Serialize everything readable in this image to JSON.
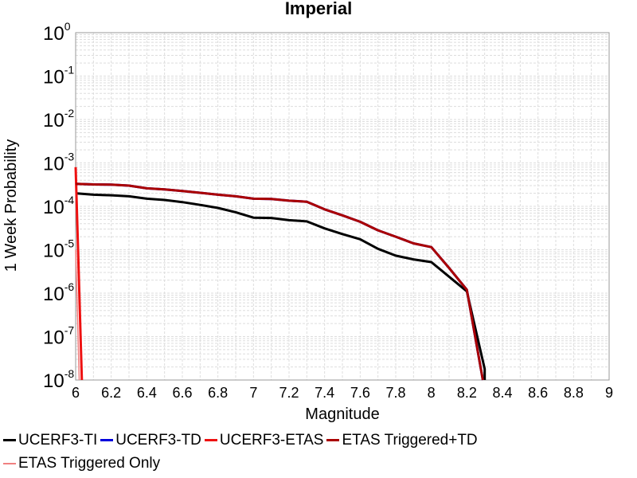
{
  "chart_data": {
    "type": "line",
    "title": "Imperial",
    "xlabel": "Magnitude",
    "ylabel": "1 Week Probability",
    "xlim": [
      6,
      9
    ],
    "ylim": [
      1e-08,
      1
    ],
    "yscale": "log",
    "grid": true,
    "legend_position": "bottom",
    "x_ticks": [
      "6",
      "6.2",
      "6.4",
      "6.6",
      "6.8",
      "7",
      "7.2",
      "7.4",
      "7.6",
      "7.8",
      "8",
      "8.2",
      "8.4",
      "8.6",
      "8.8",
      "9"
    ],
    "y_ticks": [
      {
        "base": "10",
        "exp": "0"
      },
      {
        "base": "10",
        "exp": "-1"
      },
      {
        "base": "10",
        "exp": "-2"
      },
      {
        "base": "10",
        "exp": "-3"
      },
      {
        "base": "10",
        "exp": "-4"
      },
      {
        "base": "10",
        "exp": "-5"
      },
      {
        "base": "10",
        "exp": "-6"
      },
      {
        "base": "10",
        "exp": "-7"
      },
      {
        "base": "10",
        "exp": "-8"
      }
    ],
    "series": [
      {
        "name": "UCERF3-TI",
        "color": "#000000",
        "width": 3,
        "x": [
          6.0,
          6.1,
          6.2,
          6.3,
          6.4,
          6.5,
          6.6,
          6.7,
          6.8,
          6.9,
          7.0,
          7.1,
          7.2,
          7.3,
          7.4,
          7.5,
          7.6,
          7.7,
          7.8,
          7.9,
          8.0,
          8.1,
          8.2,
          8.3,
          8.3
        ],
        "y": [
          0.0002,
          0.000185,
          0.00018,
          0.00017,
          0.00015,
          0.00014,
          0.000125,
          0.000108,
          9.2e-05,
          7.3e-05,
          5.5e-05,
          5.4e-05,
          4.8e-05,
          4.5e-05,
          3.1e-05,
          2.3e-05,
          1.75e-05,
          1.05e-05,
          7.3e-06,
          6e-06,
          5.2e-06,
          2.4e-06,
          1.1e-06,
          1.8e-08,
          1e-08
        ]
      },
      {
        "name": "UCERF3-TD",
        "color": "#0000dd",
        "width": 3,
        "x": [
          6.0,
          6.1,
          6.2,
          6.3,
          6.4,
          6.5,
          6.6,
          6.7,
          6.8,
          6.9,
          7.0,
          7.1,
          7.2,
          7.3,
          7.4,
          7.5,
          7.6,
          7.7,
          7.8,
          7.9,
          8.0,
          8.1,
          8.2,
          8.29
        ],
        "y": [
          0.00033,
          0.00032,
          0.000315,
          0.0003,
          0.00026,
          0.000245,
          0.000225,
          0.000205,
          0.000185,
          0.00017,
          0.00015,
          0.000148,
          0.000135,
          0.000128,
          8.5e-05,
          6.2e-05,
          4.4e-05,
          2.8e-05,
          2e-05,
          1.4e-05,
          1.15e-05,
          3.8e-06,
          1.2e-06,
          1e-08
        ]
      },
      {
        "name": "UCERF3-ETAS",
        "color": "#ee1111",
        "width": 3,
        "x": [
          6.0,
          6.035
        ],
        "y": [
          0.0008,
          1e-08
        ]
      },
      {
        "name": "ETAS Triggered+TD",
        "color": "#aa0000",
        "width": 3,
        "x": [
          6.0,
          6.1,
          6.2,
          6.3,
          6.4,
          6.5,
          6.6,
          6.7,
          6.8,
          6.9,
          7.0,
          7.1,
          7.2,
          7.3,
          7.4,
          7.5,
          7.6,
          7.7,
          7.8,
          7.9,
          8.0,
          8.1,
          8.2,
          8.29
        ],
        "y": [
          0.00033,
          0.00032,
          0.000315,
          0.0003,
          0.00026,
          0.000245,
          0.000225,
          0.000205,
          0.000185,
          0.00017,
          0.00015,
          0.000148,
          0.000135,
          0.000128,
          8.5e-05,
          6.2e-05,
          4.4e-05,
          2.8e-05,
          2e-05,
          1.4e-05,
          1.15e-05,
          3.8e-06,
          1.2e-06,
          1e-08
        ]
      },
      {
        "name": "ETAS Triggered Only",
        "color": "#f08080",
        "width": 1.5,
        "x": [
          6.0,
          6.02
        ],
        "y": [
          1e-05,
          1e-08
        ]
      }
    ]
  }
}
